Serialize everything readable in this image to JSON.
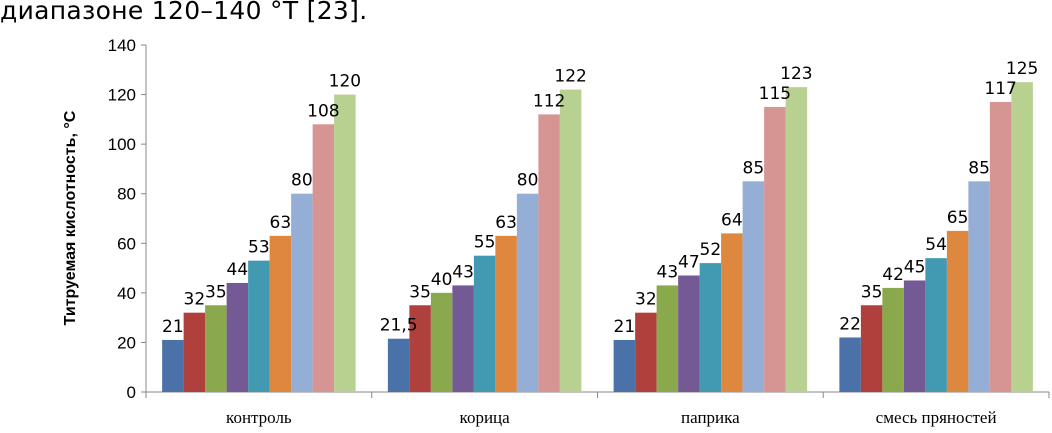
{
  "text_above": "диапазоне 120–140 °T [23].",
  "chart_data": {
    "type": "bar",
    "title": "",
    "xlabel": "",
    "ylabel": "Титруемая кислотность, °С",
    "ylim": [
      0,
      140
    ],
    "yticks": [
      0,
      20,
      40,
      60,
      80,
      100,
      120,
      140
    ],
    "grid": false,
    "legend": "none",
    "categories": [
      "контроль",
      "корица",
      "паприка",
      "смесь пряностей"
    ],
    "series": [
      {
        "color": "#4a72a8",
        "values": [
          21,
          21.5,
          21,
          22
        ],
        "labels": [
          "21",
          "21,5",
          "21",
          "22"
        ]
      },
      {
        "color": "#b0403c",
        "values": [
          32,
          35,
          32,
          35
        ],
        "labels": [
          "32",
          "35",
          "32",
          "35"
        ]
      },
      {
        "color": "#8aa84c",
        "values": [
          35,
          40,
          43,
          42
        ],
        "labels": [
          "35",
          "40",
          "43",
          "42"
        ]
      },
      {
        "color": "#745a94",
        "values": [
          44,
          43,
          47,
          45
        ],
        "labels": [
          "44",
          "43",
          "47",
          "45"
        ]
      },
      {
        "color": "#4299b2",
        "values": [
          53,
          55,
          52,
          54
        ],
        "labels": [
          "53",
          "55",
          "52",
          "54"
        ]
      },
      {
        "color": "#dd883e",
        "values": [
          63,
          63,
          64,
          65
        ],
        "labels": [
          "63",
          "63",
          "64",
          "65"
        ]
      },
      {
        "color": "#94aed6",
        "values": [
          80,
          80,
          85,
          85
        ],
        "labels": [
          "80",
          "80",
          "85",
          "85"
        ]
      },
      {
        "color": "#d69493",
        "values": [
          108,
          112,
          115,
          117
        ],
        "labels": [
          "108",
          "112",
          "115",
          "117"
        ]
      },
      {
        "color": "#b8d090",
        "values": [
          120,
          122,
          123,
          125
        ],
        "labels": [
          "120",
          "122",
          "123",
          "125"
        ]
      }
    ]
  }
}
